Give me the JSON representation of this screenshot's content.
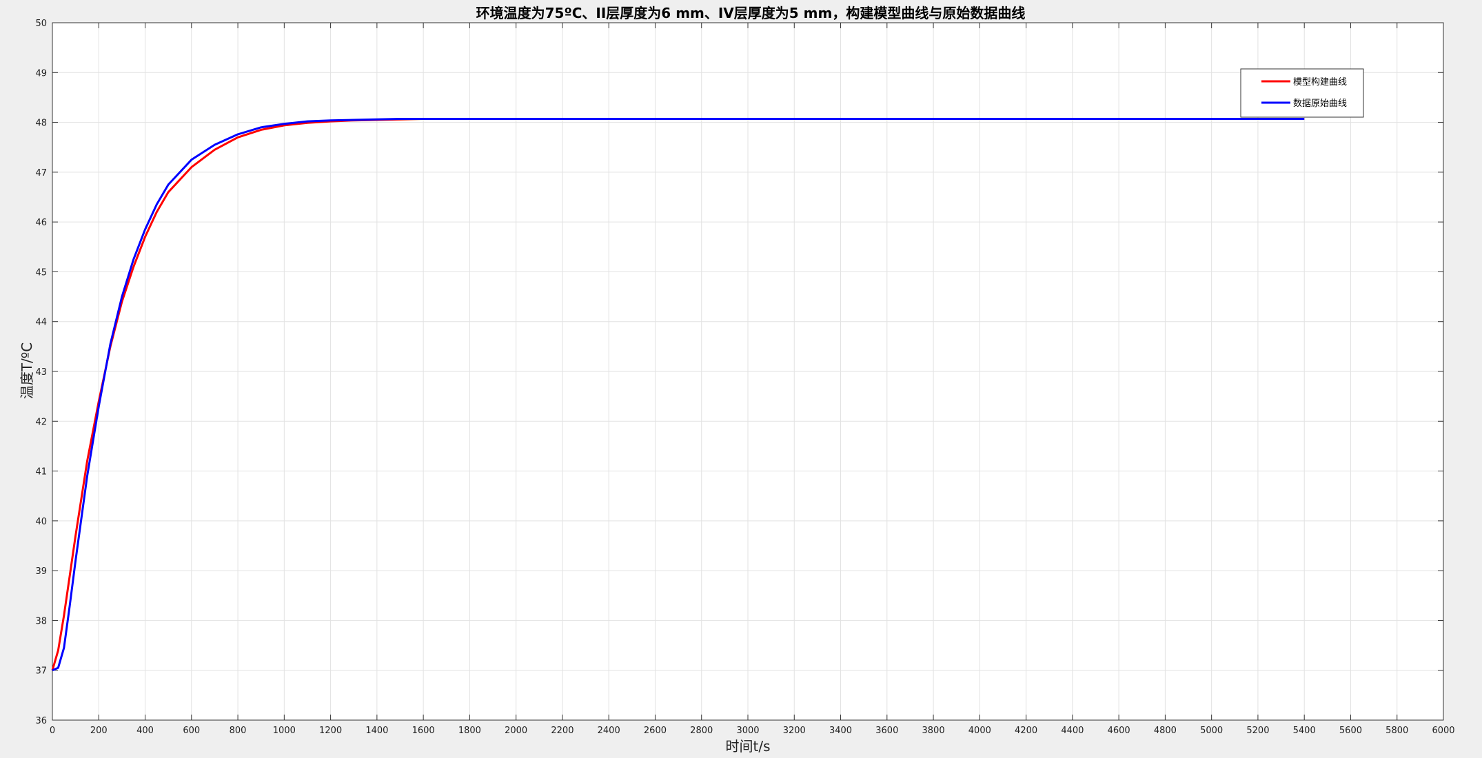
{
  "chart_data": {
    "type": "line",
    "title": "环境温度为75ºC、II层厚度为6 mm、IV层厚度为5 mm，构建模型曲线与原始数据曲线",
    "xlabel": "时间t/s",
    "ylabel": "温度T/ºC",
    "xlim": [
      0,
      6000
    ],
    "ylim": [
      36,
      50
    ],
    "xticks": [
      0,
      200,
      400,
      600,
      800,
      1000,
      1200,
      1400,
      1600,
      1800,
      2000,
      2200,
      2400,
      2600,
      2800,
      3000,
      3200,
      3400,
      3600,
      3800,
      4000,
      4200,
      4400,
      4600,
      4800,
      5000,
      5200,
      5400,
      5600,
      5800,
      6000
    ],
    "yticks": [
      36,
      37,
      38,
      39,
      40,
      41,
      42,
      43,
      44,
      45,
      46,
      47,
      48,
      49,
      50
    ],
    "grid": true,
    "legend_position": "top-right",
    "series": [
      {
        "name": "模型构建曲线",
        "color": "#ff0000",
        "x": [
          0,
          25,
          50,
          75,
          100,
          150,
          200,
          250,
          300,
          350,
          400,
          450,
          500,
          600,
          700,
          800,
          900,
          1000,
          1100,
          1200,
          1300,
          1400,
          1500,
          1600,
          1800,
          2000,
          2500,
          3000,
          3500,
          4000,
          4500,
          5000,
          5400
        ],
        "y": [
          37.0,
          37.4,
          38.1,
          38.9,
          39.7,
          41.2,
          42.4,
          43.5,
          44.4,
          45.1,
          45.7,
          46.2,
          46.6,
          47.1,
          47.45,
          47.7,
          47.85,
          47.94,
          47.99,
          48.02,
          48.04,
          48.05,
          48.06,
          48.07,
          48.07,
          48.07,
          48.07,
          48.07,
          48.07,
          48.07,
          48.07,
          48.07,
          48.07
        ]
      },
      {
        "name": "数据原始曲线",
        "color": "#0000ff",
        "x": [
          0,
          25,
          50,
          75,
          100,
          150,
          200,
          250,
          300,
          350,
          400,
          450,
          500,
          600,
          700,
          800,
          900,
          1000,
          1100,
          1200,
          1300,
          1400,
          1500,
          1600,
          1800,
          2000,
          2500,
          3000,
          3500,
          4000,
          4500,
          5000,
          5400
        ],
        "y": [
          37.0,
          37.05,
          37.45,
          38.3,
          39.2,
          40.9,
          42.3,
          43.55,
          44.5,
          45.25,
          45.85,
          46.35,
          46.75,
          47.25,
          47.55,
          47.76,
          47.9,
          47.97,
          48.02,
          48.04,
          48.05,
          48.06,
          48.07,
          48.07,
          48.07,
          48.07,
          48.07,
          48.07,
          48.07,
          48.07,
          48.07,
          48.07,
          48.07
        ]
      }
    ]
  }
}
